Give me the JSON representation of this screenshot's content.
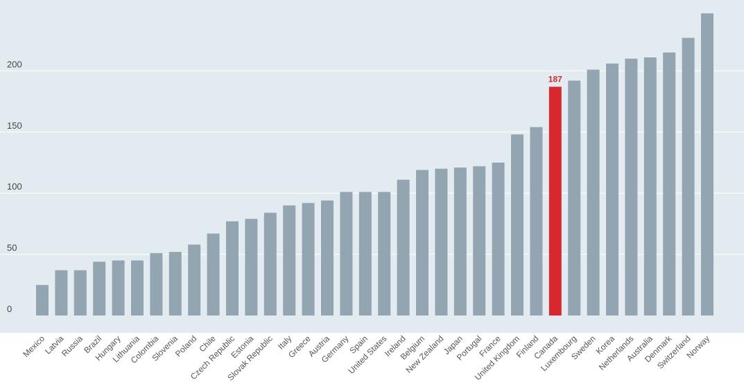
{
  "chart_data": {
    "type": "bar",
    "title": "",
    "xlabel": "",
    "ylabel": "",
    "ylim": [
      0,
      250
    ],
    "yticks": [
      0,
      50,
      100,
      150,
      200
    ],
    "grid": true,
    "categories": [
      "Mexico",
      "Latvia",
      "Russia",
      "Brazil",
      "Hungary",
      "Lithuania",
      "Colombia",
      "Slovenia",
      "Poland",
      "Chile",
      "Czech Republic",
      "Estonia",
      "Slovak Republic",
      "Italy",
      "Greece",
      "Austria",
      "Germany",
      "Spain",
      "United States",
      "Ireland",
      "Belgium",
      "New Zealand",
      "Japan",
      "Portugal",
      "France",
      "United Kingdom",
      "Finland",
      "Canada",
      "Luxembourg",
      "Sweden",
      "Korea",
      "Netherlands",
      "Australia",
      "Denmark",
      "Switzerland",
      "Norway"
    ],
    "values": [
      25,
      37,
      37,
      44,
      45,
      45,
      51,
      52,
      58,
      67,
      77,
      79,
      84,
      90,
      92,
      94,
      101,
      101,
      101,
      111,
      119,
      120,
      121,
      122,
      125,
      148,
      154,
      187,
      192,
      201,
      206,
      210,
      211,
      215,
      227,
      247
    ],
    "highlight": {
      "category": "Canada",
      "label": "187"
    },
    "colors": {
      "bar": "#94a5b2",
      "highlight": "#d7282d",
      "plot_bg": "#e2ebf0",
      "grid": "#ffffff"
    }
  }
}
